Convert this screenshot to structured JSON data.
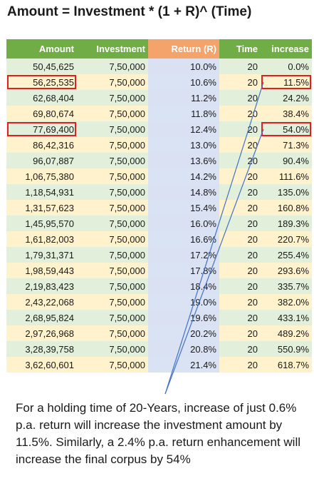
{
  "title": "Amount = Investment * (1 + R)^ (Time)",
  "table": {
    "headers": [
      "Amount",
      "Investment",
      "Return (R)",
      "Time",
      "increase"
    ],
    "rows": [
      [
        "50,45,625",
        "7,50,000",
        "10.0%",
        "20",
        "0.0%"
      ],
      [
        "56,25,535",
        "7,50,000",
        "10.6%",
        "20",
        "11.5%"
      ],
      [
        "62,68,404",
        "7,50,000",
        "11.2%",
        "20",
        "24.2%"
      ],
      [
        "69,80,674",
        "7,50,000",
        "11.8%",
        "20",
        "38.4%"
      ],
      [
        "77,69,400",
        "7,50,000",
        "12.4%",
        "20",
        "54.0%"
      ],
      [
        "86,42,316",
        "7,50,000",
        "13.0%",
        "20",
        "71.3%"
      ],
      [
        "96,07,887",
        "7,50,000",
        "13.6%",
        "20",
        "90.4%"
      ],
      [
        "1,06,75,380",
        "7,50,000",
        "14.2%",
        "20",
        "111.6%"
      ],
      [
        "1,18,54,931",
        "7,50,000",
        "14.8%",
        "20",
        "135.0%"
      ],
      [
        "1,31,57,623",
        "7,50,000",
        "15.4%",
        "20",
        "160.8%"
      ],
      [
        "1,45,95,570",
        "7,50,000",
        "16.0%",
        "20",
        "189.3%"
      ],
      [
        "1,61,82,003",
        "7,50,000",
        "16.6%",
        "20",
        "220.7%"
      ],
      [
        "1,79,31,371",
        "7,50,000",
        "17.2%",
        "20",
        "255.4%"
      ],
      [
        "1,98,59,443",
        "7,50,000",
        "17.8%",
        "20",
        "293.6%"
      ],
      [
        "2,19,83,423",
        "7,50,000",
        "18.4%",
        "20",
        "335.7%"
      ],
      [
        "2,43,22,068",
        "7,50,000",
        "19.0%",
        "20",
        "382.0%"
      ],
      [
        "2,68,95,824",
        "7,50,000",
        "19.6%",
        "20",
        "433.1%"
      ],
      [
        "2,97,26,968",
        "7,50,000",
        "20.2%",
        "20",
        "489.2%"
      ],
      [
        "3,28,39,758",
        "7,50,000",
        "20.8%",
        "20",
        "550.9%"
      ],
      [
        "3,62,60,601",
        "7,50,000",
        "21.4%",
        "20",
        "618.7%"
      ]
    ],
    "highlighted_rows": [
      1,
      4
    ]
  },
  "colors": {
    "header_green": "#70ad47",
    "header_orange": "#f4a36b",
    "highlight_box": "#e02020",
    "annotation_line": "#4472c4"
  },
  "note": "For a holding time of 20-Years, increase of just 0.6% p.a. return will increase the investment amount by 11.5%. Similarly, a 2.4% p.a. return enhancement will increase the final corpus by 54%"
}
